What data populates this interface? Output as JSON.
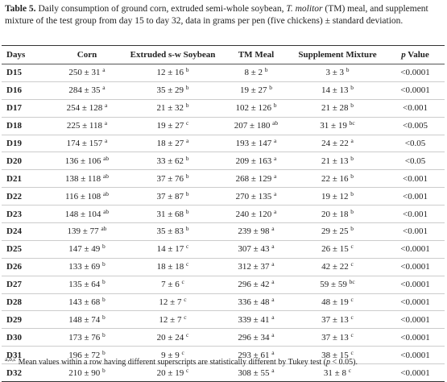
{
  "caption": {
    "label": "Table 5.",
    "text1": " Daily consumption of ground corn, extruded semi-whole soybean, ",
    "italic": "T. molitor",
    "text2": " (TM) meal, and supplement mixture of the test group from day 15 to day 32, data in grams per pen (five chickens) ± standard deviation."
  },
  "table": {
    "header": [
      "Days",
      "Corn",
      "Extruded s-w Soybean",
      "TM Meal",
      "Supplement Mixture"
    ],
    "header_p": {
      "italic": "p",
      "text": " Value"
    },
    "rows": [
      [
        "D15",
        {
          "text": "250 ± 31",
          "sup": "a"
        },
        {
          "text": "12 ± 16",
          "sup": "b"
        },
        {
          "text": "8 ± 2",
          "sup": "b"
        },
        {
          "text": "3 ± 3",
          "sup": "b"
        },
        "<0.0001"
      ],
      [
        "D16",
        {
          "text": "284 ± 35",
          "sup": "a"
        },
        {
          "text": "35 ± 29",
          "sup": "b"
        },
        {
          "text": "19 ± 27",
          "sup": "b"
        },
        {
          "text": "14 ± 13",
          "sup": "b"
        },
        "<0.0001"
      ],
      [
        "D17",
        {
          "text": "254 ± 128",
          "sup": "a"
        },
        {
          "text": "21 ± 32",
          "sup": "b"
        },
        {
          "text": "102 ± 126",
          "sup": "b"
        },
        {
          "text": "21 ± 28",
          "sup": "b"
        },
        "<0.001"
      ],
      [
        "D18",
        {
          "text": "225 ± 118",
          "sup": "a"
        },
        {
          "text": "19 ± 27",
          "sup": "c"
        },
        {
          "text": "207 ± 180",
          "sup": "ab"
        },
        {
          "text": "31 ± 19",
          "sup": "bc"
        },
        "<0.005"
      ],
      [
        "D19",
        {
          "text": "174 ± 157",
          "sup": "a"
        },
        {
          "text": "18 ± 27",
          "sup": "a"
        },
        {
          "text": "193 ± 147",
          "sup": "a"
        },
        {
          "text": "24 ± 22",
          "sup": "a"
        },
        "<0.05"
      ],
      [
        "D20",
        {
          "text": "136 ± 106",
          "sup": "ab"
        },
        {
          "text": "33 ± 62",
          "sup": "b"
        },
        {
          "text": "209 ± 163",
          "sup": "a"
        },
        {
          "text": "21 ± 13",
          "sup": "b"
        },
        "<0.05"
      ],
      [
        "D21",
        {
          "text": "138 ± 118",
          "sup": "ab"
        },
        {
          "text": "37 ± 76",
          "sup": "b"
        },
        {
          "text": "268 ± 129",
          "sup": "a"
        },
        {
          "text": "22 ± 16",
          "sup": "b"
        },
        "<0.001"
      ],
      [
        "D22",
        {
          "text": "116 ± 108",
          "sup": "ab"
        },
        {
          "text": "37 ± 87",
          "sup": "b"
        },
        {
          "text": "270 ± 135",
          "sup": "a"
        },
        {
          "text": "19 ± 12",
          "sup": "b"
        },
        "<0.001"
      ],
      [
        "D23",
        {
          "text": "148 ± 104",
          "sup": "ab"
        },
        {
          "text": "31 ± 68",
          "sup": "b"
        },
        {
          "text": "240 ± 120",
          "sup": "a"
        },
        {
          "text": "20 ± 18",
          "sup": "b"
        },
        "<0.001"
      ],
      [
        "D24",
        {
          "text": "139 ± 77",
          "sup": "ab"
        },
        {
          "text": "35 ± 83",
          "sup": "b"
        },
        {
          "text": "239 ± 98",
          "sup": "a"
        },
        {
          "text": "29 ± 25",
          "sup": "b"
        },
        "<0.001"
      ],
      [
        "D25",
        {
          "text": "147 ± 49",
          "sup": "b"
        },
        {
          "text": "14 ± 17",
          "sup": "c"
        },
        {
          "text": "307 ± 43",
          "sup": "a"
        },
        {
          "text": "26 ± 15",
          "sup": "c"
        },
        "<0.0001"
      ],
      [
        "D26",
        {
          "text": "133 ± 69",
          "sup": "b"
        },
        {
          "text": "18 ± 18",
          "sup": "c"
        },
        {
          "text": "312 ± 37",
          "sup": "a"
        },
        {
          "text": "42 ± 22",
          "sup": "c"
        },
        "<0.0001"
      ],
      [
        "D27",
        {
          "text": "135 ± 64",
          "sup": "b"
        },
        {
          "text": "7 ± 6",
          "sup": "c"
        },
        {
          "text": "296 ± 42",
          "sup": "a"
        },
        {
          "text": "59 ± 59",
          "sup": "bc"
        },
        "<0.0001"
      ],
      [
        "D28",
        {
          "text": "143 ± 68",
          "sup": "b"
        },
        {
          "text": "12 ± 7",
          "sup": "c"
        },
        {
          "text": "336 ± 48",
          "sup": "a"
        },
        {
          "text": "48 ± 19",
          "sup": "c"
        },
        "<0.0001"
      ],
      [
        "D29",
        {
          "text": "148 ± 74",
          "sup": "b"
        },
        {
          "text": "12 ± 7",
          "sup": "c"
        },
        {
          "text": "339 ± 41",
          "sup": "a"
        },
        {
          "text": "37 ± 13",
          "sup": "c"
        },
        "<0.0001"
      ],
      [
        "D30",
        {
          "text": "173 ± 76",
          "sup": "b"
        },
        {
          "text": "20 ± 24",
          "sup": "c"
        },
        {
          "text": "296 ± 34",
          "sup": "a"
        },
        {
          "text": "37 ± 13",
          "sup": "c"
        },
        "<0.0001"
      ],
      [
        "D31",
        {
          "text": "196 ± 72",
          "sup": "b"
        },
        {
          "text": "9 ± 9",
          "sup": "c"
        },
        {
          "text": "293 ± 61",
          "sup": "a"
        },
        {
          "text": "38 ± 15",
          "sup": "c"
        },
        "<0.0001"
      ],
      [
        "D32",
        {
          "text": "210 ± 90",
          "sup": "b"
        },
        {
          "text": "20 ± 19",
          "sup": "c"
        },
        {
          "text": "308 ± 55",
          "sup": "a"
        },
        {
          "text": "31 ± 8",
          "sup": "c"
        },
        "<0.0001"
      ]
    ]
  },
  "footnote": {
    "sup": "a,b,c",
    "text1": " Mean values within a row having different superscripts are statistically different by Tukey test (",
    "italic": "p",
    "text2": " < 0.05)."
  }
}
